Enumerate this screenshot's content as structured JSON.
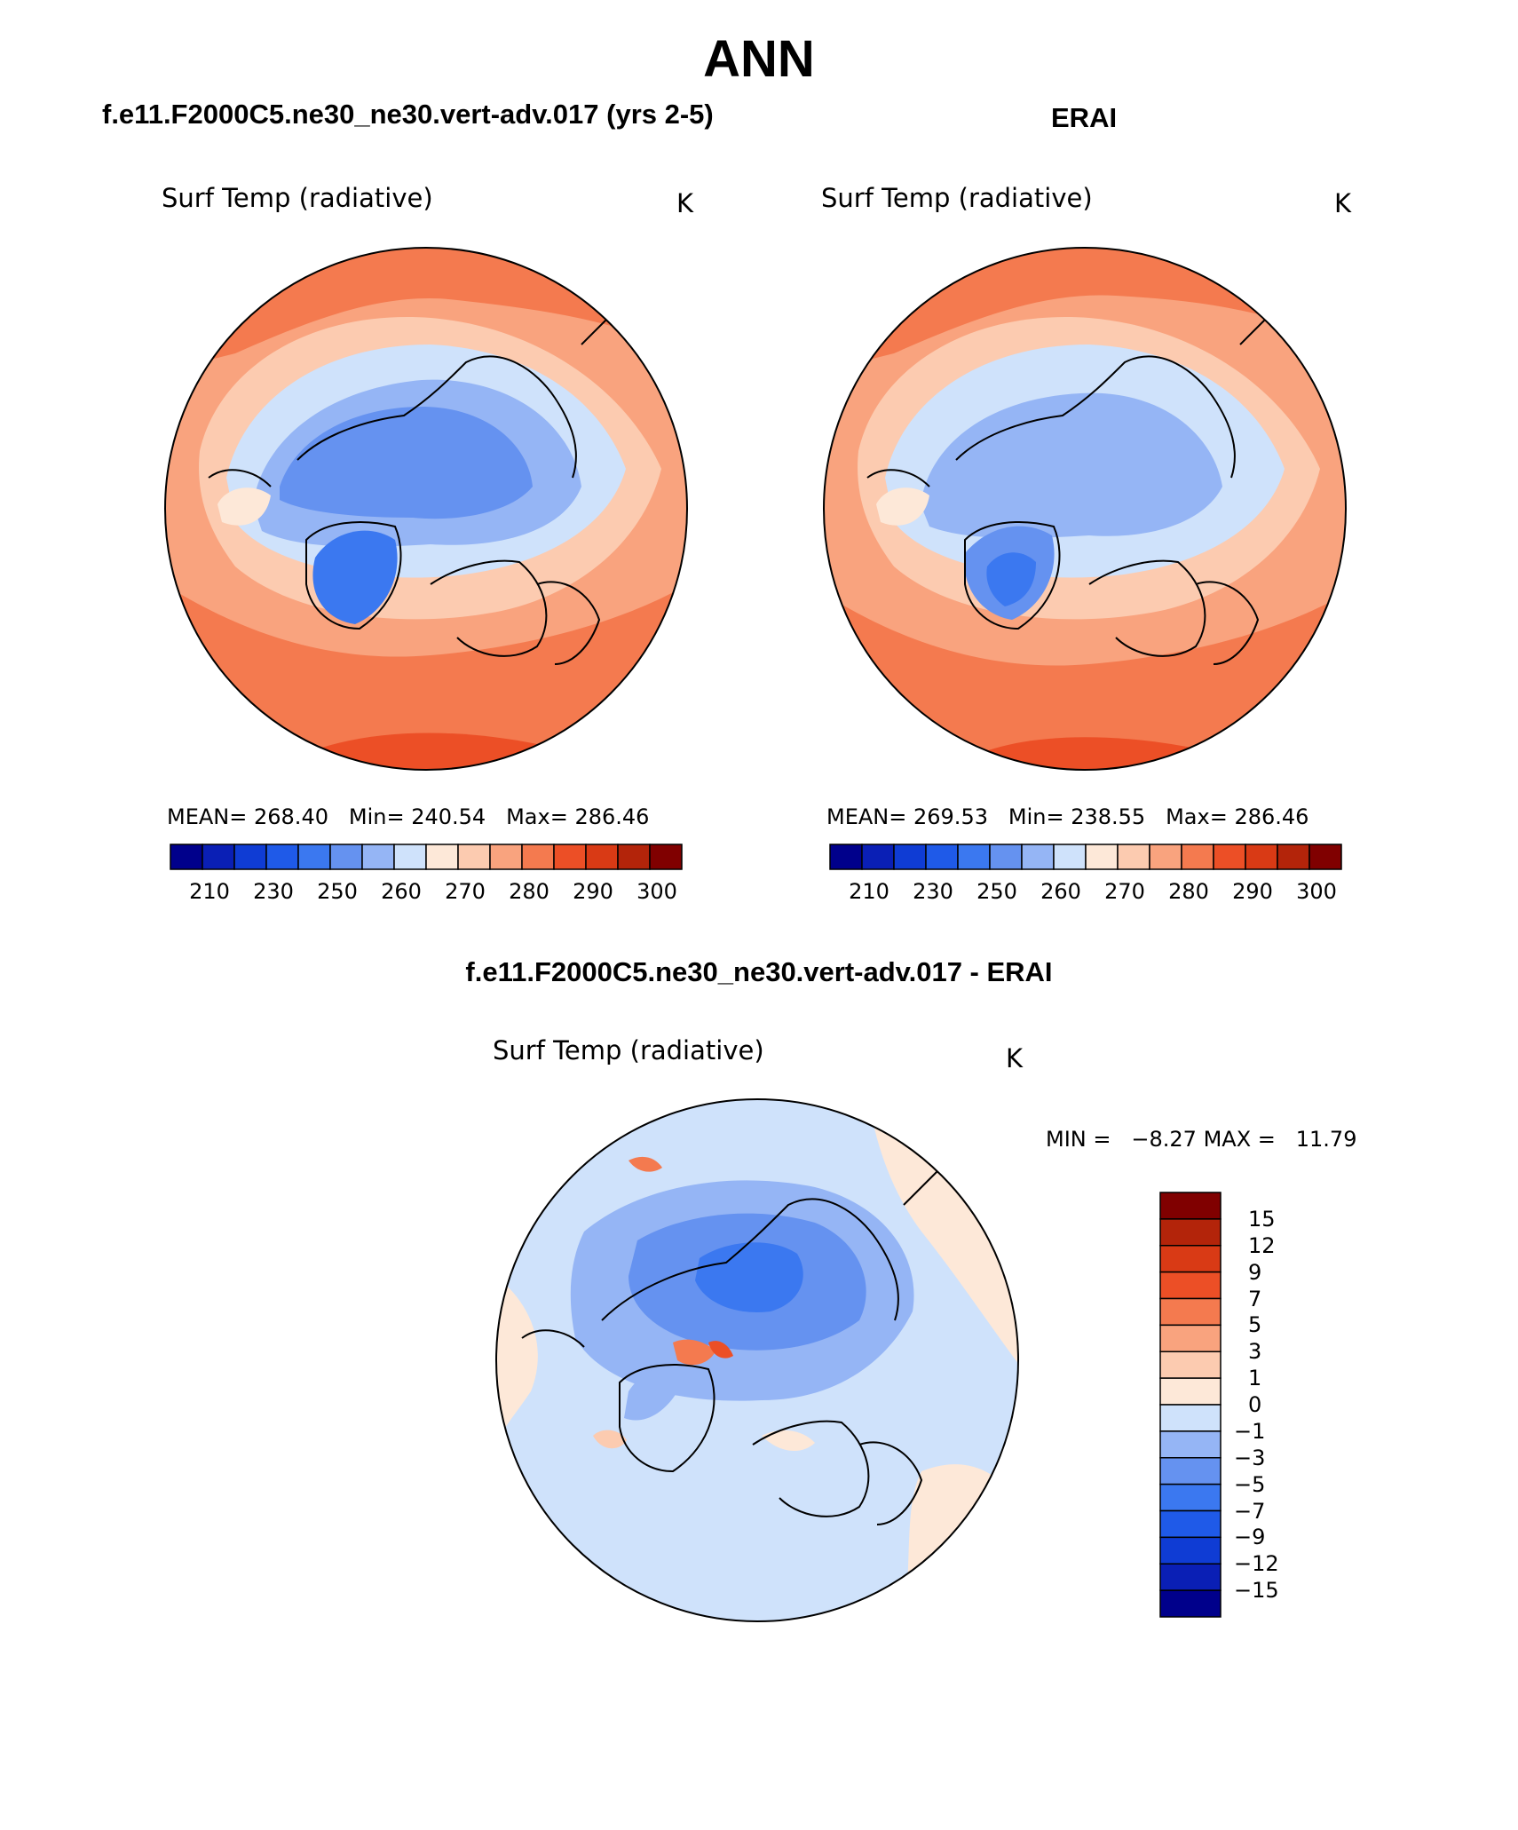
{
  "figure": {
    "title": "ANN",
    "panels": [
      {
        "id": "model",
        "heading": "f.e11.F2000C5.ne30_ne30.vert-adv.017 (yrs 2-5)",
        "variable_label": "Surf Temp (radiative)",
        "units": "K",
        "stats": {
          "mean_label": "MEAN=",
          "mean": "268.40",
          "min_label": "Min=",
          "min": "240.54",
          "max_label": "Max=",
          "max": "286.46"
        }
      },
      {
        "id": "obs",
        "heading": "ERAI",
        "variable_label": "Surf Temp (radiative)",
        "units": "K",
        "stats": {
          "mean_label": "MEAN=",
          "mean": "269.53",
          "min_label": "Min=",
          "min": "238.55",
          "max_label": "Max=",
          "max": "286.46"
        }
      },
      {
        "id": "diff",
        "heading": "f.e11.F2000C5.ne30_ne30.vert-adv.017 - ERAI",
        "variable_label": "Surf Temp (radiative)",
        "units": "K",
        "stats": {
          "min_label": "MIN =",
          "min": "−8.27",
          "max_label": "MAX =",
          "max": "11.79"
        }
      }
    ],
    "colorbar_abs": {
      "colors": [
        "#00008b",
        "#0a1fb5",
        "#0f3cd4",
        "#1f5ae8",
        "#3b78f0",
        "#6592f0",
        "#95b5f5",
        "#cfe2fb",
        "#fde8d8",
        "#fccbb0",
        "#f9a37e",
        "#f47a4f",
        "#ec4f26",
        "#d93a15",
        "#b3240a",
        "#800000"
      ],
      "tick_labels": [
        "210",
        "230",
        "250",
        "260",
        "270",
        "280",
        "290",
        "300"
      ]
    },
    "colorbar_diff": {
      "colors": [
        "#00008b",
        "#0a1fb5",
        "#0f3cd4",
        "#1f5ae8",
        "#3b78f0",
        "#6592f0",
        "#95b5f5",
        "#cfe2fb",
        "#fde8d8",
        "#fccbb0",
        "#f9a37e",
        "#f47a4f",
        "#ec4f26",
        "#d93a15",
        "#b3240a",
        "#800000"
      ],
      "tick_labels": [
        "15",
        "12",
        "9",
        "7",
        "5",
        "3",
        "1",
        "0",
        "−1",
        "−3",
        "−5",
        "−7",
        "−9",
        "−12",
        "−15"
      ]
    }
  }
}
